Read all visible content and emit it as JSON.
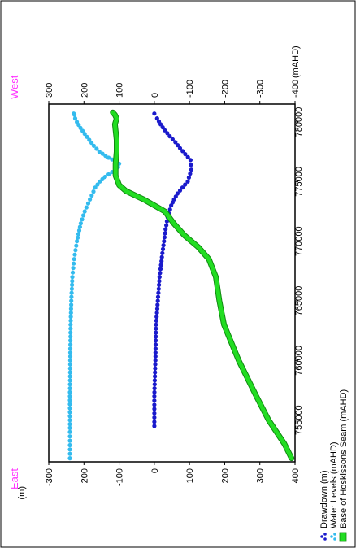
{
  "chart_data": {
    "type": "scatter",
    "rotated": "90-degrees-counterclockwise",
    "x_axis": {
      "label": "",
      "ticks": [
        "755000",
        "760000",
        "765000",
        "770000",
        "775000",
        "780000"
      ],
      "range": [
        751500,
        781500
      ]
    },
    "left_axis": {
      "label": "(m)",
      "ticks": [
        "-300",
        "-200",
        "-100",
        "0",
        "100",
        "200",
        "300",
        "400"
      ],
      "range": [
        -300,
        400
      ]
    },
    "right_axis": {
      "label": "(mAHD)",
      "ticks": [
        "300",
        "200",
        "100",
        "0",
        "-100",
        "-200",
        "-300",
        "-400"
      ],
      "range": [
        300,
        -400
      ]
    },
    "direction_labels": {
      "low_end": "East",
      "high_end": "West"
    },
    "legend": {
      "placement": "bottom-right",
      "items": [
        {
          "label": "Drawdown (m)",
          "color": "#1a1acc"
        },
        {
          "label": "Water Levels (mAHD)",
          "color": "#33bbee"
        },
        {
          "label": "Base of Hoskissons Seam (mAHD)",
          "color": "#22dd22"
        }
      ]
    },
    "series": [
      {
        "name": "Drawdown (m)",
        "color": "#1a1acc",
        "marker": "dot",
        "axis": "left",
        "points": [
          [
            754500,
            0
          ],
          [
            757000,
            0
          ],
          [
            760000,
            3
          ],
          [
            763000,
            5
          ],
          [
            765000,
            10
          ],
          [
            767000,
            15
          ],
          [
            769000,
            23
          ],
          [
            771000,
            32
          ],
          [
            772000,
            38
          ],
          [
            773000,
            48
          ],
          [
            773500,
            56
          ],
          [
            774000,
            66
          ],
          [
            774500,
            80
          ],
          [
            775000,
            95
          ],
          [
            776000,
            105
          ],
          [
            776800,
            103
          ],
          [
            777300,
            88
          ],
          [
            777800,
            73
          ],
          [
            778300,
            60
          ],
          [
            778800,
            44
          ],
          [
            779300,
            30
          ],
          [
            779800,
            18
          ],
          [
            780300,
            8
          ],
          [
            780700,
            0
          ]
        ]
      },
      {
        "name": "Water Levels (mAHD)",
        "color": "#33bbee",
        "marker": "dot",
        "axis": "right",
        "points": [
          [
            751800,
            240
          ],
          [
            754000,
            240
          ],
          [
            757000,
            240
          ],
          [
            760000,
            239
          ],
          [
            763000,
            238
          ],
          [
            765000,
            236
          ],
          [
            767000,
            233
          ],
          [
            768500,
            228
          ],
          [
            770000,
            220
          ],
          [
            771500,
            209
          ],
          [
            772500,
            198
          ],
          [
            773500,
            183
          ],
          [
            774500,
            168
          ],
          [
            775000,
            155
          ],
          [
            775400,
            140
          ],
          [
            775800,
            120
          ],
          [
            776000,
            110
          ],
          [
            776200,
            103
          ],
          [
            776500,
            100
          ],
          [
            776700,
            110
          ],
          [
            777000,
            130
          ],
          [
            777500,
            156
          ],
          [
            778000,
            172
          ],
          [
            778500,
            185
          ],
          [
            779000,
            198
          ],
          [
            779500,
            210
          ],
          [
            780000,
            220
          ],
          [
            780300,
            225
          ],
          [
            780600,
            227
          ],
          [
            780700,
            229
          ]
        ]
      },
      {
        "name": "Base of Hoskissons Seam (mAHD)",
        "color": "#22dd22",
        "marker": "band",
        "axis": "right",
        "points": [
          [
            751800,
            -390
          ],
          [
            753000,
            -370
          ],
          [
            755000,
            -325
          ],
          [
            757000,
            -290
          ],
          [
            760000,
            -240
          ],
          [
            763000,
            -198
          ],
          [
            765000,
            -185
          ],
          [
            767000,
            -175
          ],
          [
            768500,
            -155
          ],
          [
            769500,
            -125
          ],
          [
            770500,
            -85
          ],
          [
            771500,
            -55
          ],
          [
            772500,
            -30
          ],
          [
            773500,
            30
          ],
          [
            774200,
            80
          ],
          [
            774700,
            100
          ],
          [
            775500,
            110
          ],
          [
            776500,
            110
          ],
          [
            777500,
            107
          ],
          [
            778500,
            107
          ],
          [
            779300,
            110
          ],
          [
            779800,
            112
          ],
          [
            780300,
            107
          ],
          [
            780600,
            112
          ],
          [
            780800,
            118
          ]
        ]
      }
    ]
  }
}
